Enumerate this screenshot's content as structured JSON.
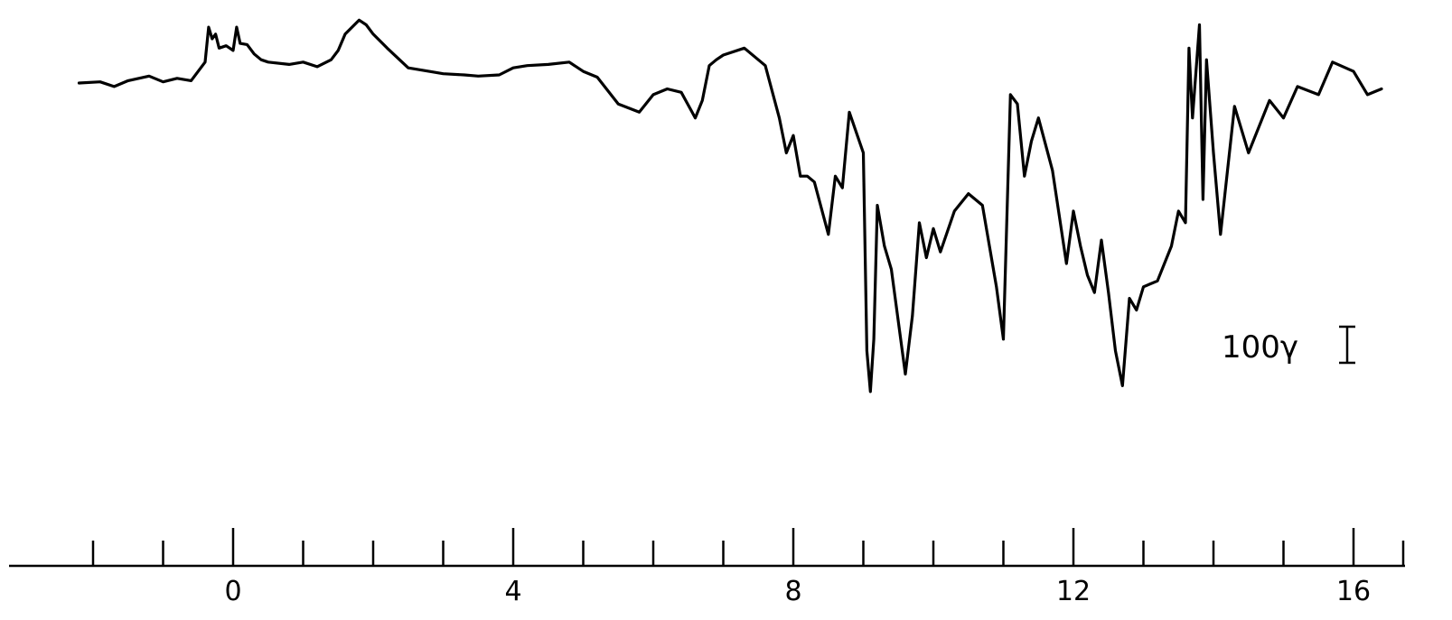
{
  "chart_data": {
    "type": "line",
    "title": "",
    "xlabel": "",
    "ylabel": "",
    "xlim": [
      -3.2,
      17
    ],
    "ylim": [
      -360,
      60
    ],
    "x_tick_labels": [
      "0",
      "4",
      "8",
      "12",
      "16"
    ],
    "x_tick_label_values": [
      0,
      4,
      8,
      12,
      16
    ],
    "minor_ticks_every": 1,
    "minor_ticks_range": [
      -2,
      16
    ],
    "scale_bar": {
      "label": "100γ",
      "value": 100
    },
    "grid": false,
    "legend": "none",
    "series": [
      {
        "x": [
          -2.2,
          -1.9,
          -1.7,
          -1.5,
          -1.2,
          -1.0,
          -0.8,
          -0.6,
          -0.4,
          -0.35,
          -0.3,
          -0.25,
          -0.2,
          -0.1,
          0.0,
          0.05,
          0.1,
          0.2,
          0.3,
          0.4,
          0.5,
          0.8,
          1.0,
          1.2,
          1.4,
          1.5,
          1.6,
          1.8,
          1.9,
          2.0,
          2.2,
          2.5,
          2.8,
          3.0,
          3.3,
          3.5,
          3.8,
          4.0,
          4.2,
          4.5,
          4.8,
          5.0,
          5.2,
          5.5,
          5.8,
          6.0,
          6.2,
          6.4,
          6.6,
          6.7,
          6.8,
          6.9,
          7.0,
          7.3,
          7.6,
          7.8,
          7.9,
          8.0,
          8.1,
          8.2,
          8.3,
          8.5,
          8.6,
          8.7,
          8.8,
          9.0,
          9.05,
          9.1,
          9.15,
          9.2,
          9.3,
          9.4,
          9.6,
          9.7,
          9.8,
          9.9,
          10.0,
          10.1,
          10.3,
          10.5,
          10.7,
          10.9,
          11.0,
          11.1,
          11.2,
          11.3,
          11.4,
          11.5,
          11.7,
          11.9,
          12.0,
          12.1,
          12.2,
          12.3,
          12.4,
          12.5,
          12.6,
          12.7,
          12.8,
          12.9,
          13.0,
          13.2,
          13.4,
          13.5,
          13.6,
          13.65,
          13.7,
          13.8,
          13.85,
          13.9,
          14.0,
          14.1,
          14.3,
          14.5,
          14.8,
          15.0,
          15.2,
          15.5,
          15.7,
          16.0,
          16.2,
          16.4
        ],
        "y": [
          0,
          1,
          -3,
          2,
          6,
          1,
          4,
          2,
          18,
          48,
          38,
          42,
          30,
          32,
          28,
          48,
          34,
          33,
          25,
          20,
          18,
          16,
          18,
          14,
          20,
          28,
          42,
          54,
          50,
          42,
          30,
          13,
          10,
          8,
          7,
          6,
          7,
          13,
          15,
          16,
          18,
          10,
          5,
          -18,
          -25,
          -10,
          -5,
          -8,
          -30,
          -15,
          15,
          20,
          24,
          30,
          15,
          -30,
          -60,
          -45,
          -80,
          -80,
          -85,
          -130,
          -80,
          -90,
          -25,
          -60,
          -230,
          -265,
          -220,
          -105,
          -140,
          -160,
          -250,
          -200,
          -120,
          -150,
          -125,
          -145,
          -110,
          -95,
          -105,
          -175,
          -220,
          -10,
          -18,
          -80,
          -50,
          -30,
          -75,
          -155,
          -110,
          -140,
          -165,
          -180,
          -135,
          -180,
          -230,
          -260,
          -185,
          -195,
          -175,
          -170,
          -140,
          -110,
          -120,
          30,
          -30,
          50,
          -100,
          20,
          -60,
          -130,
          -20,
          -60,
          -15,
          -30,
          -3,
          -10,
          18,
          10,
          -10,
          -5
        ]
      }
    ]
  }
}
